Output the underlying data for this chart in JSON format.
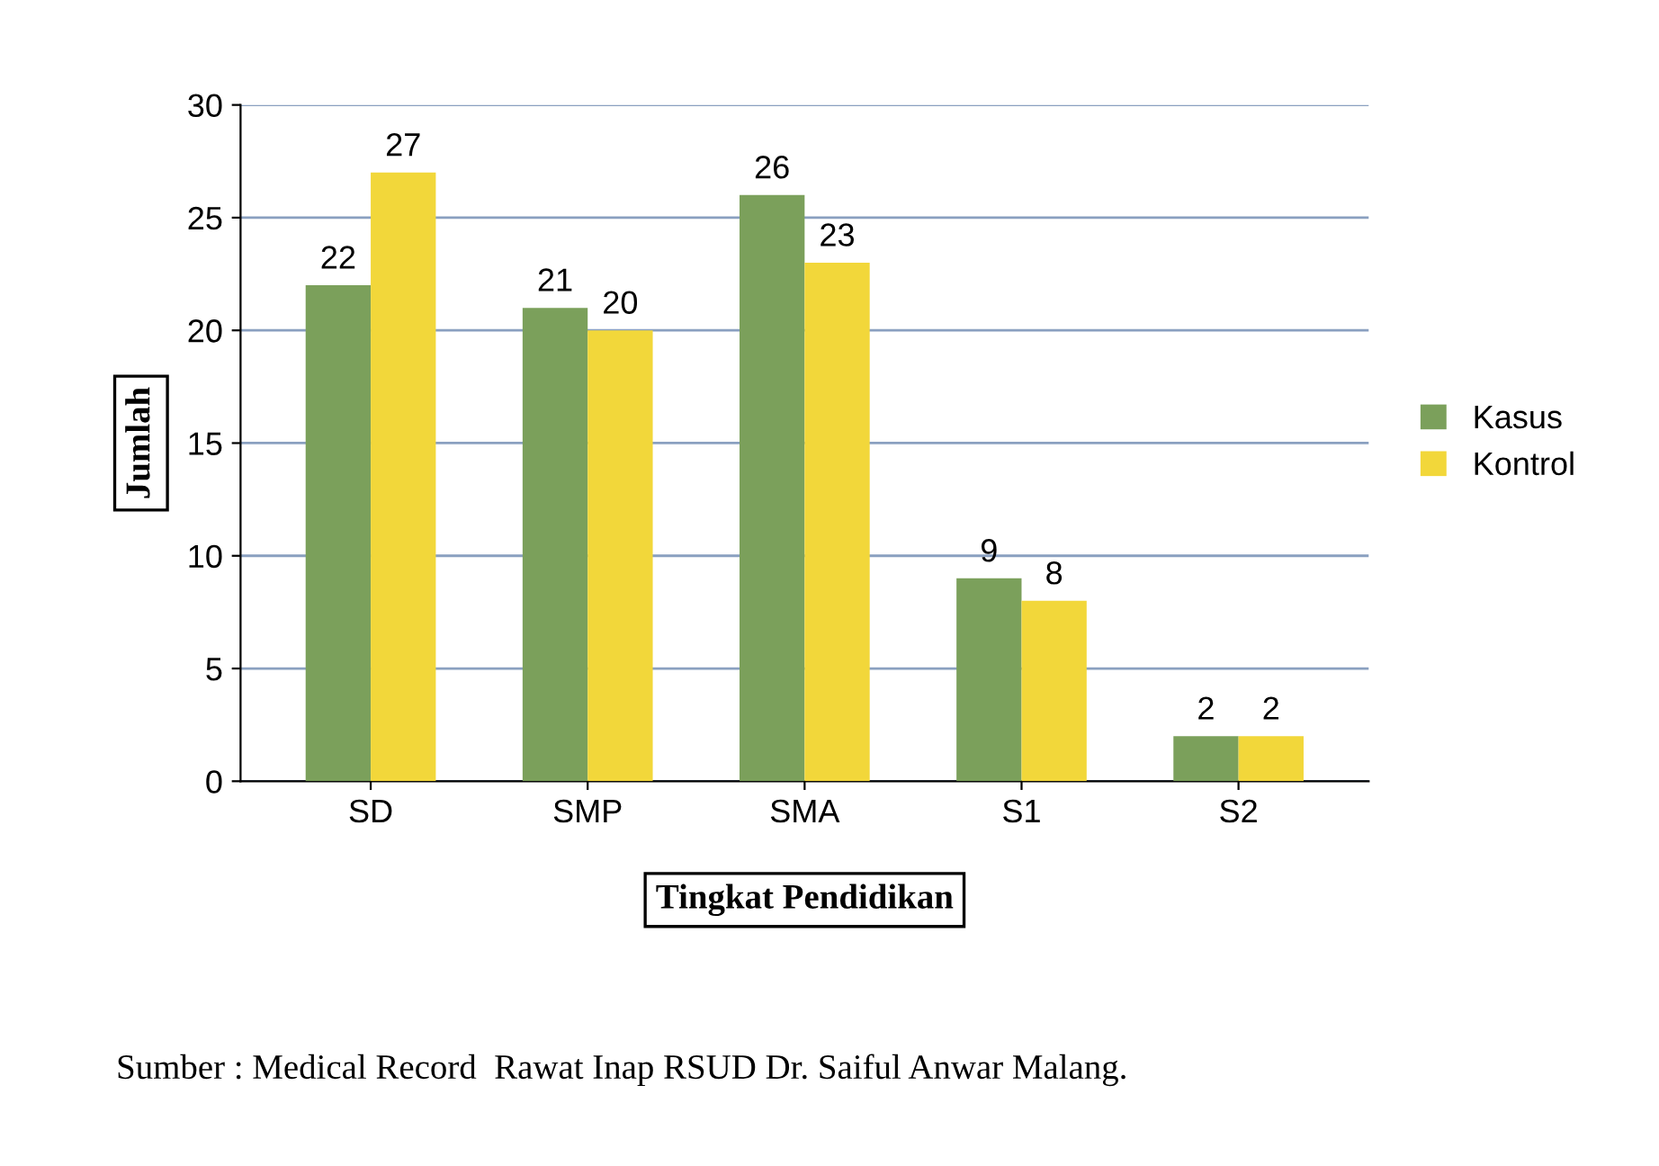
{
  "chart_data": {
    "type": "bar",
    "xlabel": "Tingkat Pendidikan",
    "ylabel": "Jumlah",
    "categories": [
      "SD",
      "SMP",
      "SMA",
      "S1",
      "S2"
    ],
    "series": [
      {
        "name": "Kasus",
        "color": "#7ba05b",
        "values": [
          22,
          21,
          26,
          9,
          2
        ]
      },
      {
        "name": "Kontrol",
        "color": "#f2d73a",
        "values": [
          27,
          20,
          23,
          8,
          2
        ]
      }
    ],
    "ylim": [
      0,
      30
    ],
    "yticks": [
      0,
      5,
      10,
      15,
      20,
      25,
      30
    ],
    "grid": "y",
    "legend": "right",
    "data_labels": true,
    "annotations": [
      "Sumber : Medical Record  Rawat Inap RSUD Dr. Saiful Anwar Malang."
    ]
  }
}
